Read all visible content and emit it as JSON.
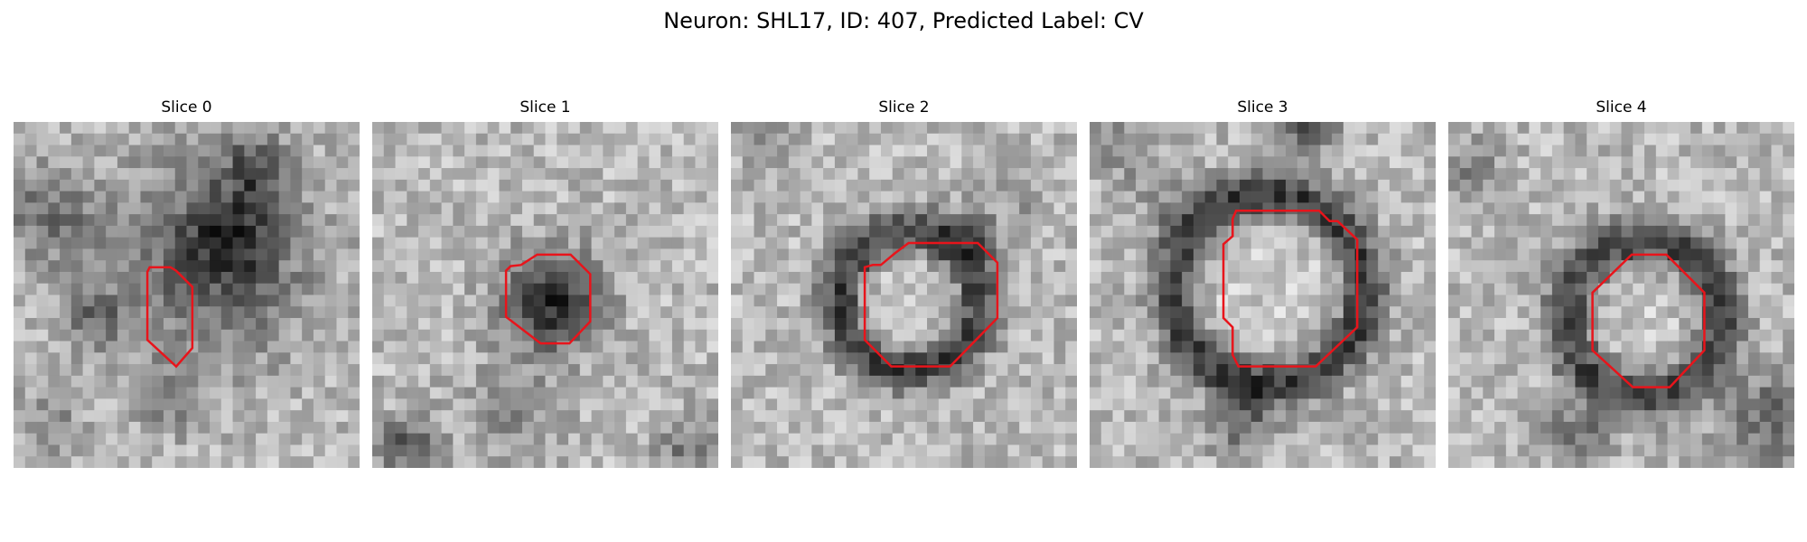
{
  "figure": {
    "title": "Neuron: SHL17, ID: 407, Predicted Label: CV"
  },
  "contour_color": "#e8141b",
  "panels": [
    {
      "title": "Slice 0",
      "feature": "blob"
    },
    {
      "title": "Slice 1",
      "feature": "dark-spot"
    },
    {
      "title": "Slice 2",
      "feature": "ring"
    },
    {
      "title": "Slice 3",
      "feature": "ring"
    },
    {
      "title": "Slice 4",
      "feature": "ring"
    }
  ]
}
